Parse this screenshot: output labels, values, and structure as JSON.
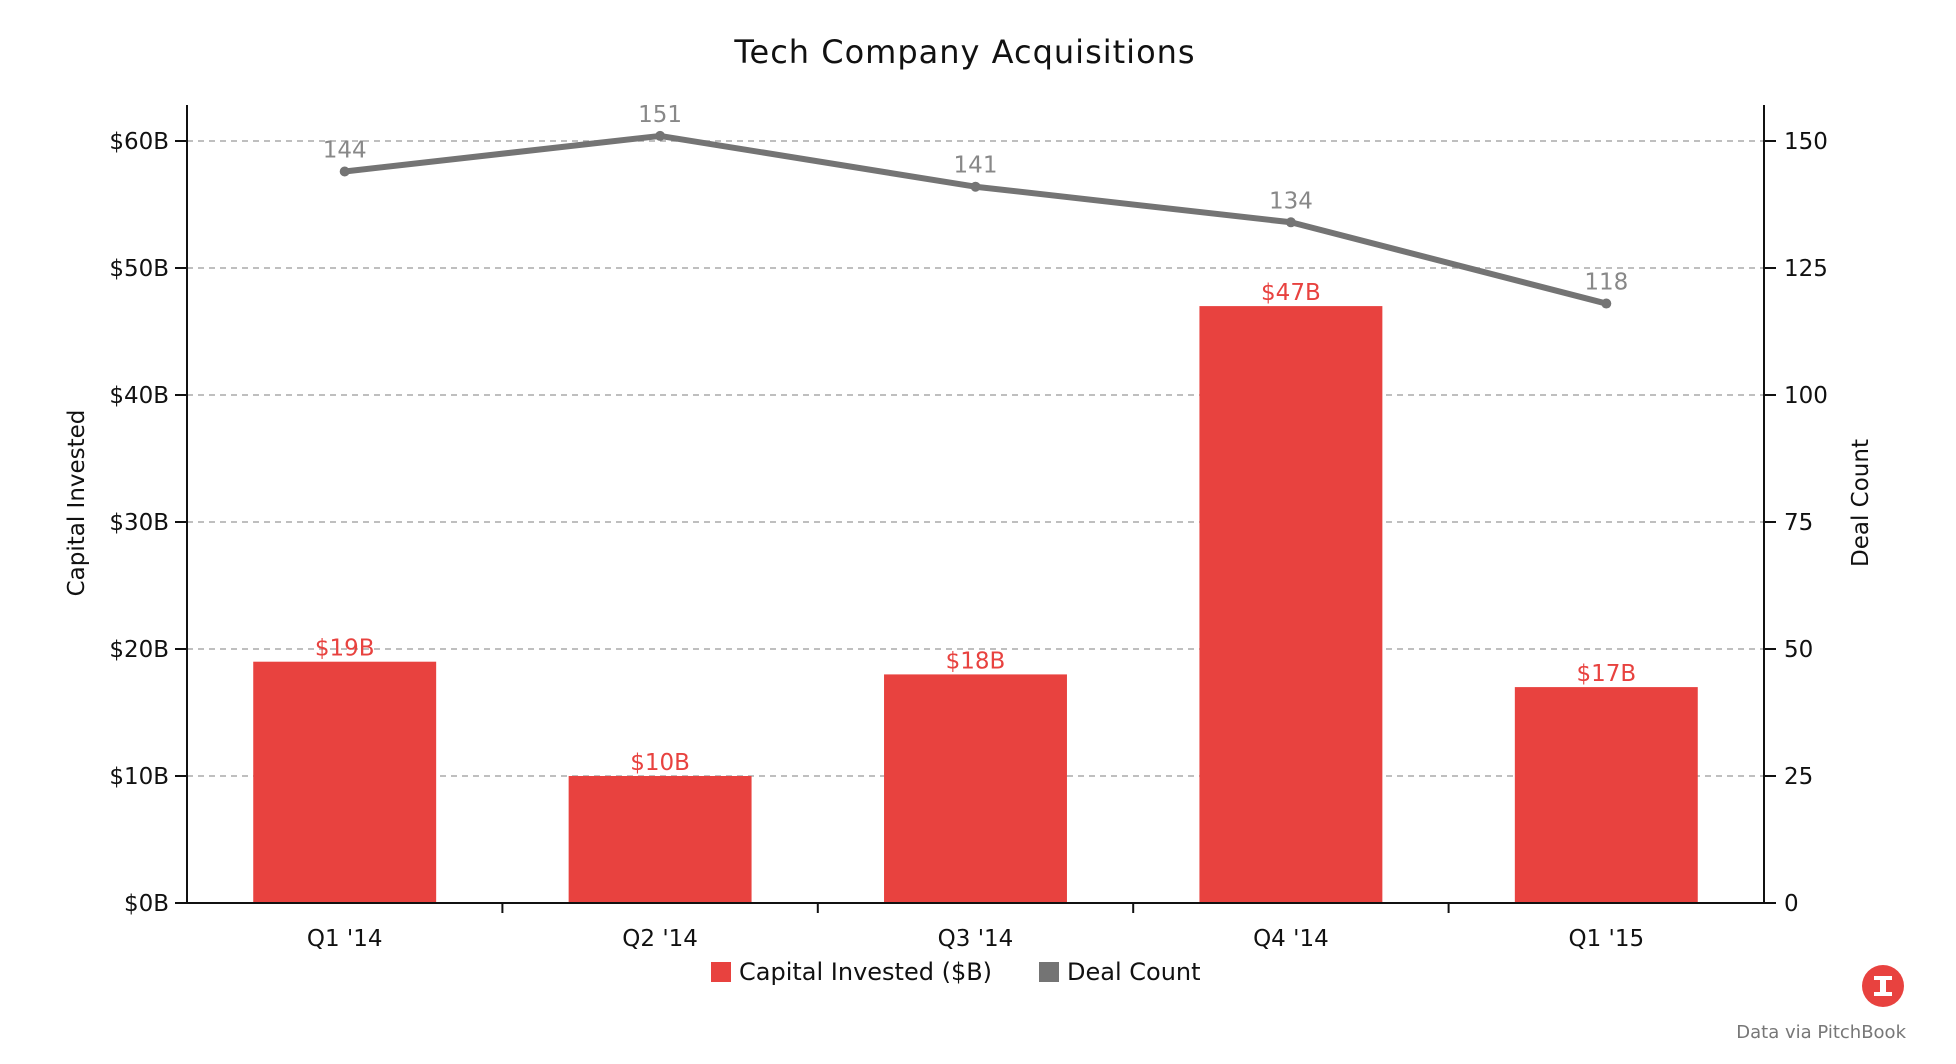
{
  "chart_data": {
    "type": "bar+line",
    "title": "Tech Company Acquisitions",
    "categories": [
      "Q1 '14",
      "Q2 '14",
      "Q3 '14",
      "Q4 '14",
      "Q1 '15"
    ],
    "series": [
      {
        "name": "Capital Invested ($B)",
        "type": "bar",
        "axis": "left",
        "color": "#e8423f",
        "values": [
          19,
          10,
          18,
          47,
          17
        ],
        "labels": [
          "$19B",
          "$10B",
          "$18B",
          "$47B",
          "$17B"
        ]
      },
      {
        "name": "Deal Count",
        "type": "line",
        "axis": "right",
        "color": "#747474",
        "values": [
          144,
          151,
          141,
          134,
          118
        ],
        "labels": [
          "144",
          "151",
          "141",
          "134",
          "118"
        ]
      }
    ],
    "y_left": {
      "label": "Capital Invested",
      "range": [
        0,
        60
      ],
      "ticks": [
        0,
        10,
        20,
        30,
        40,
        50,
        60
      ],
      "tick_labels": [
        "$0B",
        "$10B",
        "$20B",
        "$30B",
        "$40B",
        "$50B",
        "$60B"
      ]
    },
    "y_right": {
      "label": "Deal Count",
      "range": [
        0,
        150
      ],
      "ticks": [
        0,
        25,
        50,
        75,
        100,
        125,
        150
      ],
      "tick_labels": [
        "0",
        "25",
        "50",
        "75",
        "100",
        "125",
        "150"
      ]
    },
    "grid": true,
    "legend_position": "bottom"
  },
  "footer": {
    "source": "Data via PitchBook",
    "logo_letter": "I",
    "logo_color": "#e8423f"
  }
}
